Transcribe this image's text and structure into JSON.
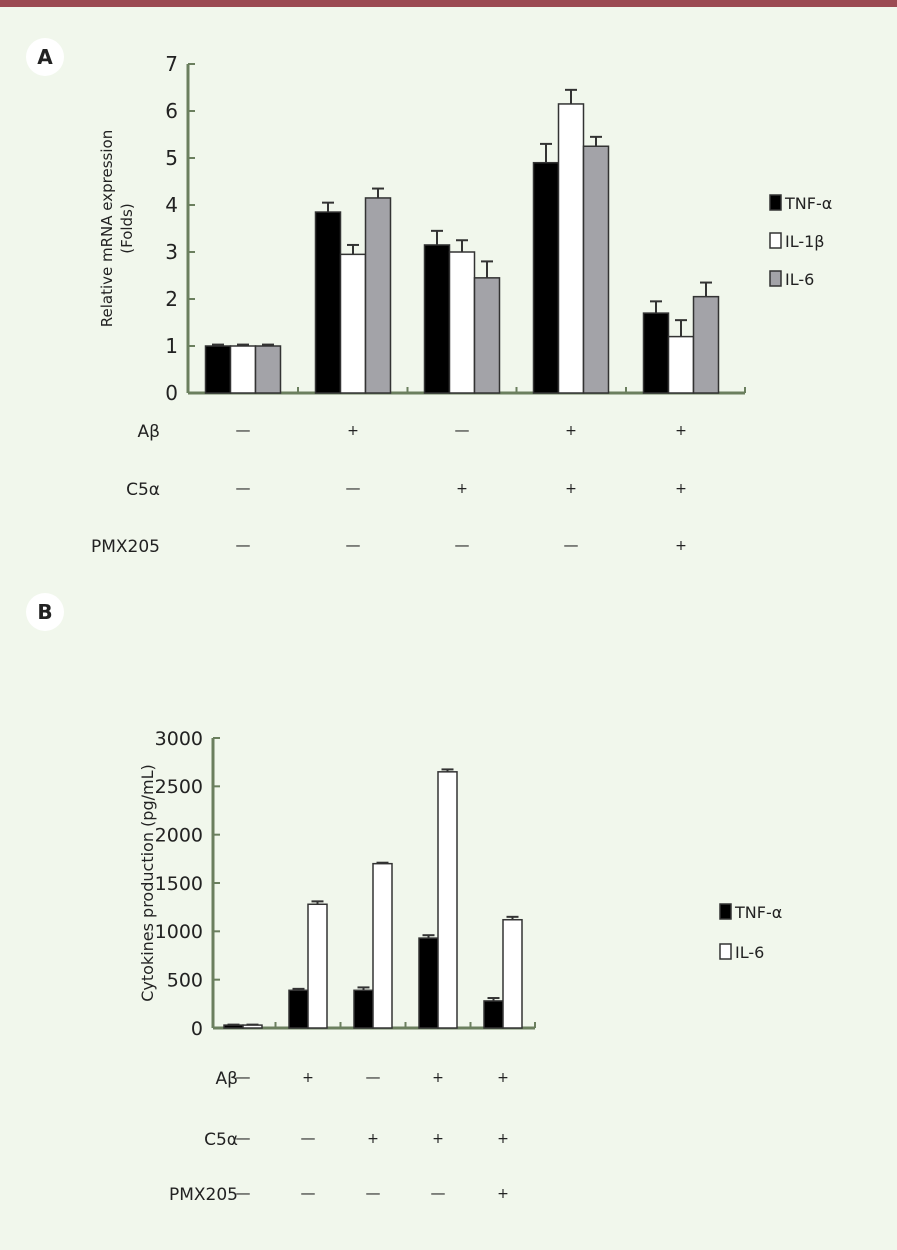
{
  "panels": {
    "a": "A",
    "b": "B"
  },
  "colors": {
    "topbar": "#9b4a52",
    "axis": "#6b7f5e",
    "black": "#000000",
    "white": "#ffffff",
    "gray": "#a3a3a8"
  },
  "chart_data": [
    {
      "type": "bar",
      "title": "A",
      "ylabel": "Relative mRNA expression (Folds)",
      "ylabel_lines": [
        "Relative mRNA expression",
        "(Folds)"
      ],
      "ylim": [
        0,
        7
      ],
      "yticks": [
        "0",
        "1",
        "2",
        "3",
        "4",
        "5",
        "6",
        "7"
      ],
      "legend_position": "right",
      "series": [
        {
          "name": "TNF-α",
          "color": "#000000",
          "values": [
            1.0,
            3.85,
            3.15,
            4.9,
            1.7
          ],
          "errors": [
            0.03,
            0.2,
            0.3,
            0.4,
            0.25
          ]
        },
        {
          "name": "IL-1β",
          "color": "#ffffff",
          "values": [
            1.0,
            2.95,
            3.0,
            6.15,
            1.2
          ],
          "errors": [
            0.03,
            0.2,
            0.25,
            0.3,
            0.35
          ]
        },
        {
          "name": "IL-6",
          "color": "#a3a3a8",
          "values": [
            1.0,
            4.15,
            2.45,
            5.25,
            2.05
          ],
          "errors": [
            0.03,
            0.2,
            0.35,
            0.2,
            0.3
          ]
        }
      ],
      "conditions": [
        {
          "label": "Aβ",
          "values": [
            "—",
            "+",
            "—",
            "+",
            "+"
          ]
        },
        {
          "label": "C5α",
          "values": [
            "—",
            "—",
            "+",
            "+",
            "+"
          ]
        },
        {
          "label": "PMX205",
          "values": [
            "—",
            "—",
            "—",
            "—",
            "+"
          ]
        }
      ]
    },
    {
      "type": "bar",
      "title": "B",
      "ylabel": "Cytokines production (pg/mL)",
      "ylim": [
        0,
        3000
      ],
      "yticks": [
        "0",
        "500",
        "1000",
        "1500",
        "2000",
        "2500",
        "3000"
      ],
      "legend_position": "right",
      "series": [
        {
          "name": "TNF-α",
          "color": "#000000",
          "values": [
            30,
            390,
            390,
            930,
            280
          ],
          "errors": [
            5,
            15,
            30,
            30,
            30
          ]
        },
        {
          "name": "IL-6",
          "color": "#ffffff",
          "values": [
            30,
            1280,
            1700,
            2650,
            1120
          ],
          "errors": [
            5,
            30,
            10,
            25,
            30
          ]
        }
      ],
      "conditions": [
        {
          "label": "Aβ",
          "values": [
            "—",
            "+",
            "—",
            "+",
            "+"
          ]
        },
        {
          "label": "C5α",
          "values": [
            "—",
            "—",
            "+",
            "+",
            "+"
          ]
        },
        {
          "label": "PMX205",
          "values": [
            "—",
            "—",
            "—",
            "—",
            "+"
          ]
        }
      ]
    }
  ]
}
